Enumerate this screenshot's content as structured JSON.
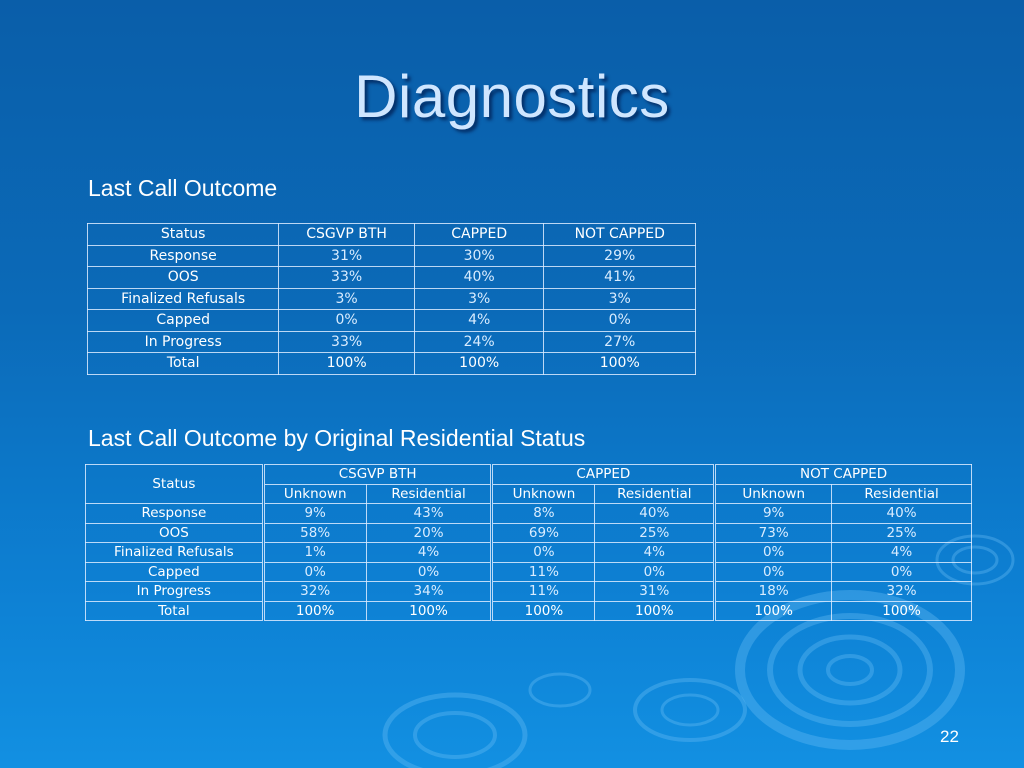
{
  "slide": {
    "title": "Diagnostics",
    "page_number": "22"
  },
  "section1": {
    "heading": "Last Call Outcome",
    "headers": [
      "Status",
      "CSGVP BTH",
      "CAPPED",
      "NOT CAPPED"
    ],
    "rows": [
      [
        "Response",
        "31%",
        "30%",
        "29%"
      ],
      [
        "OOS",
        "33%",
        "40%",
        "41%"
      ],
      [
        "Finalized Refusals",
        "3%",
        "3%",
        "3%"
      ],
      [
        "Capped",
        "0%",
        "4%",
        "0%"
      ],
      [
        "In Progress",
        "33%",
        "24%",
        "27%"
      ],
      [
        "Total",
        "100%",
        "100%",
        "100%"
      ]
    ]
  },
  "section2": {
    "heading": "Last Call Outcome by Original Residential Status",
    "status_header": "Status",
    "groups": [
      "CSGVP BTH",
      "CAPPED",
      "NOT CAPPED"
    ],
    "subheaders": [
      "Unknown",
      "Residential",
      "Unknown",
      "Residential",
      "Unknown",
      "Residential"
    ],
    "rows": [
      [
        "Response",
        "9%",
        "43%",
        "8%",
        "40%",
        "9%",
        "40%"
      ],
      [
        "OOS",
        "58%",
        "20%",
        "69%",
        "25%",
        "73%",
        "25%"
      ],
      [
        "Finalized Refusals",
        "1%",
        "4%",
        "0%",
        "4%",
        "0%",
        "4%"
      ],
      [
        "Capped",
        "0%",
        "0%",
        "11%",
        "0%",
        "0%",
        "0%"
      ],
      [
        "In Progress",
        "32%",
        "34%",
        "11%",
        "31%",
        "18%",
        "32%"
      ],
      [
        "Total",
        "100%",
        "100%",
        "100%",
        "100%",
        "100%",
        "100%"
      ]
    ]
  }
}
